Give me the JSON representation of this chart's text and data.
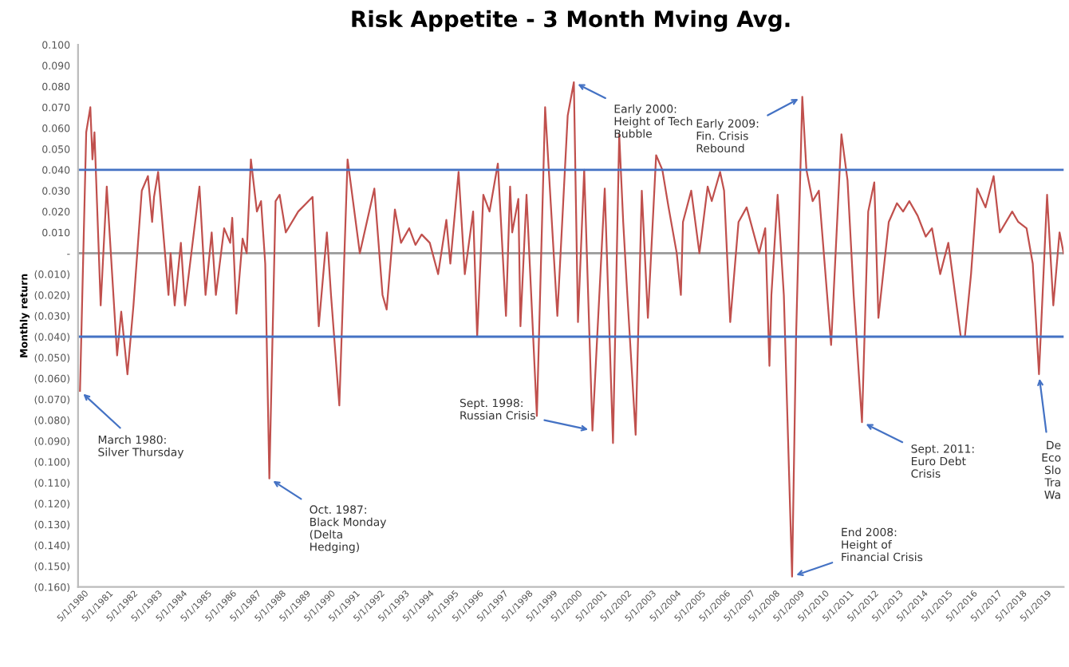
{
  "chart_data": {
    "type": "line",
    "title": "Risk Appetite - 3 Month Mving Avg.",
    "ylabel": "Monthly return",
    "x": [
      "1980-03",
      "1980-06",
      "1980-08",
      "1980-09",
      "1980-10",
      "1981-01",
      "1981-04",
      "1981-09",
      "1981-11",
      "1982-02",
      "1982-05",
      "1982-09",
      "1982-12",
      "1983-02",
      "1983-03",
      "1983-05",
      "1983-10",
      "1983-11",
      "1984-01",
      "1984-04",
      "1984-06",
      "1985-01",
      "1985-04",
      "1985-07",
      "1985-09",
      "1986-01",
      "1986-04",
      "1986-05",
      "1986-07",
      "1986-10",
      "1986-12",
      "1987-02",
      "1987-05",
      "1987-07",
      "1987-09",
      "1987-11",
      "1988-02",
      "1988-04",
      "1988-07",
      "1989-01",
      "1989-08",
      "1989-11",
      "1990-03",
      "1990-05",
      "1990-09",
      "1991-01",
      "1991-07",
      "1992-02",
      "1992-06",
      "1992-08",
      "1992-12",
      "1993-03",
      "1993-07",
      "1993-10",
      "1994-01",
      "1994-05",
      "1994-09",
      "1995-01",
      "1995-03",
      "1995-07",
      "1995-10",
      "1996-02",
      "1996-04",
      "1996-07",
      "1996-10",
      "1997-02",
      "1997-06",
      "1997-08",
      "1997-09",
      "1997-12",
      "1998-01",
      "1998-04",
      "1998-09",
      "1999-01",
      "1999-07",
      "1999-12",
      "2000-03",
      "2000-05",
      "2000-08",
      "2000-12",
      "2001-06",
      "2001-10",
      "2002-01",
      "2002-03",
      "2002-05",
      "2002-09",
      "2002-12",
      "2003-03",
      "2003-07",
      "2003-10",
      "2004-01",
      "2004-05",
      "2004-07",
      "2004-08",
      "2004-12",
      "2005-04",
      "2005-08",
      "2005-10",
      "2006-02",
      "2006-04",
      "2006-07",
      "2006-11",
      "2007-03",
      "2007-09",
      "2007-12",
      "2008-02",
      "2008-03",
      "2008-06",
      "2008-09",
      "2009-01",
      "2009-03",
      "2009-06",
      "2009-08",
      "2009-11",
      "2010-02",
      "2010-08",
      "2011-01",
      "2011-04",
      "2011-07",
      "2011-11",
      "2012-02",
      "2012-05",
      "2012-07",
      "2012-12",
      "2013-04",
      "2013-07",
      "2013-10",
      "2014-02",
      "2014-06",
      "2014-09",
      "2015-01",
      "2015-05",
      "2015-09",
      "2015-11",
      "2016-01",
      "2016-04",
      "2016-07",
      "2016-11",
      "2017-03",
      "2017-06",
      "2017-12",
      "2018-03",
      "2018-07",
      "2018-10",
      "2019-01",
      "2019-05",
      "2019-08",
      "2019-11",
      "2020-01"
    ],
    "series": [
      {
        "color": "#c0504d",
        "values": [
          -0.066,
          0.058,
          0.07,
          0.045,
          0.058,
          -0.025,
          0.032,
          -0.049,
          -0.028,
          -0.058,
          -0.025,
          0.03,
          0.037,
          0.015,
          0.027,
          0.039,
          -0.02,
          0.0,
          -0.025,
          0.005,
          -0.025,
          0.032,
          -0.02,
          0.01,
          -0.02,
          0.012,
          0.005,
          0.017,
          -0.029,
          0.007,
          0.0,
          0.045,
          0.02,
          0.025,
          -0.005,
          -0.108,
          0.025,
          0.028,
          0.01,
          0.02,
          0.027,
          -0.035,
          0.01,
          -0.02,
          -0.073,
          0.045,
          0.0,
          0.031,
          -0.02,
          -0.027,
          0.021,
          0.005,
          0.012,
          0.004,
          0.009,
          0.005,
          -0.01,
          0.016,
          -0.005,
          0.039,
          -0.01,
          0.02,
          -0.04,
          0.028,
          0.02,
          0.043,
          -0.03,
          0.032,
          0.01,
          0.026,
          -0.035,
          0.028,
          -0.078,
          0.07,
          -0.03,
          0.066,
          0.082,
          -0.033,
          0.04,
          -0.085,
          0.031,
          -0.091,
          0.057,
          0.015,
          -0.02,
          -0.087,
          0.03,
          -0.031,
          0.047,
          0.04,
          0.022,
          0.0,
          -0.02,
          0.015,
          0.03,
          0.0,
          0.032,
          0.025,
          0.039,
          0.03,
          -0.033,
          0.015,
          0.022,
          0.0,
          0.012,
          -0.054,
          -0.02,
          0.028,
          -0.02,
          -0.155,
          -0.04,
          0.075,
          0.04,
          0.025,
          0.03,
          -0.044,
          0.057,
          0.035,
          -0.02,
          -0.081,
          0.02,
          0.034,
          -0.031,
          0.015,
          0.024,
          0.02,
          0.025,
          0.018,
          0.008,
          0.012,
          -0.01,
          0.005,
          -0.025,
          -0.04,
          -0.04,
          -0.01,
          0.031,
          0.022,
          0.037,
          0.01,
          0.02,
          0.015,
          0.012,
          -0.005,
          -0.058,
          0.028,
          -0.025,
          0.01,
          0.0
        ]
      }
    ],
    "xlim": [
      "1980-02-01",
      "2020-01-01"
    ],
    "xticks": [
      {
        "value": "1980-05-01",
        "label": "5/1/1980"
      },
      {
        "value": "1981-05-01",
        "label": "5/1/1981"
      },
      {
        "value": "1982-05-01",
        "label": "5/1/1982"
      },
      {
        "value": "1983-05-01",
        "label": "5/1/1983"
      },
      {
        "value": "1984-05-01",
        "label": "5/1/1984"
      },
      {
        "value": "1985-05-01",
        "label": "5/1/1985"
      },
      {
        "value": "1986-05-01",
        "label": "5/1/1986"
      },
      {
        "value": "1987-05-01",
        "label": "5/1/1987"
      },
      {
        "value": "1988-05-01",
        "label": "5/1/1988"
      },
      {
        "value": "1989-05-01",
        "label": "5/1/1989"
      },
      {
        "value": "1990-05-01",
        "label": "5/1/1990"
      },
      {
        "value": "1991-05-01",
        "label": "5/1/1991"
      },
      {
        "value": "1992-05-01",
        "label": "5/1/1992"
      },
      {
        "value": "1993-05-01",
        "label": "5/1/1993"
      },
      {
        "value": "1994-05-01",
        "label": "5/1/1994"
      },
      {
        "value": "1995-05-01",
        "label": "5/1/1995"
      },
      {
        "value": "1996-05-01",
        "label": "5/1/1996"
      },
      {
        "value": "1997-05-01",
        "label": "5/1/1997"
      },
      {
        "value": "1998-05-01",
        "label": "5/1/1998"
      },
      {
        "value": "1999-05-01",
        "label": "5/1/1999"
      },
      {
        "value": "2000-05-01",
        "label": "5/1/2000"
      },
      {
        "value": "2001-05-01",
        "label": "5/1/2001"
      },
      {
        "value": "2002-05-01",
        "label": "5/1/2002"
      },
      {
        "value": "2003-05-01",
        "label": "5/1/2003"
      },
      {
        "value": "2004-05-01",
        "label": "5/1/2004"
      },
      {
        "value": "2005-05-01",
        "label": "5/1/2005"
      },
      {
        "value": "2006-05-01",
        "label": "5/1/2006"
      },
      {
        "value": "2007-05-01",
        "label": "5/1/2007"
      },
      {
        "value": "2008-05-01",
        "label": "5/1/2008"
      },
      {
        "value": "2009-05-01",
        "label": "5/1/2009"
      },
      {
        "value": "2010-05-01",
        "label": "5/1/2010"
      },
      {
        "value": "2011-05-01",
        "label": "5/1/2011"
      },
      {
        "value": "2012-05-01",
        "label": "5/1/2012"
      },
      {
        "value": "2013-05-01",
        "label": "5/1/2013"
      },
      {
        "value": "2014-05-01",
        "label": "5/1/2014"
      },
      {
        "value": "2015-05-01",
        "label": "5/1/2015"
      },
      {
        "value": "2016-05-01",
        "label": "5/1/2016"
      },
      {
        "value": "2017-05-01",
        "label": "5/1/2017"
      },
      {
        "value": "2018-05-01",
        "label": "5/1/2018"
      },
      {
        "value": "2019-05-01",
        "label": "5/1/2019"
      }
    ],
    "ylim": [
      -0.16,
      0.1
    ],
    "yticks": [
      {
        "value": 0.1,
        "label": "0.100"
      },
      {
        "value": 0.09,
        "label": "0.090"
      },
      {
        "value": 0.08,
        "label": "0.080"
      },
      {
        "value": 0.07,
        "label": "0.070"
      },
      {
        "value": 0.06,
        "label": "0.060"
      },
      {
        "value": 0.05,
        "label": "0.050"
      },
      {
        "value": 0.04,
        "label": "0.040"
      },
      {
        "value": 0.03,
        "label": "0.030"
      },
      {
        "value": 0.02,
        "label": "0.020"
      },
      {
        "value": 0.01,
        "label": "0.010"
      },
      {
        "value": 0,
        "label": "-"
      },
      {
        "value": -0.01,
        "label": "(0.010)"
      },
      {
        "value": -0.02,
        "label": "(0.020)"
      },
      {
        "value": -0.03,
        "label": "(0.030)"
      },
      {
        "value": -0.04,
        "label": "(0.040)"
      },
      {
        "value": -0.05,
        "label": "(0.050)"
      },
      {
        "value": -0.06,
        "label": "(0.060)"
      },
      {
        "value": -0.07,
        "label": "(0.070)"
      },
      {
        "value": -0.08,
        "label": "(0.080)"
      },
      {
        "value": -0.09,
        "label": "(0.090)"
      },
      {
        "value": -0.1,
        "label": "(0.100)"
      },
      {
        "value": -0.11,
        "label": "(0.110)"
      },
      {
        "value": -0.12,
        "label": "(0.120)"
      },
      {
        "value": -0.13,
        "label": "(0.130)"
      },
      {
        "value": -0.14,
        "label": "(0.140)"
      },
      {
        "value": -0.15,
        "label": "(0.150)"
      },
      {
        "value": -0.16,
        "label": "(0.160)"
      }
    ],
    "ref_lines": [
      {
        "axis": "y",
        "value": 0.04,
        "color": "#4472c4"
      },
      {
        "axis": "y",
        "value": -0.04,
        "color": "#4472c4"
      }
    ],
    "annotations": [
      {
        "text": "March 1980:\nSilver Thursday",
        "x": "1980-03",
        "y": -0.066
      },
      {
        "text": "Oct. 1987:\nBlack Monday\n(Delta\nHedging)",
        "x": "1987-11",
        "y": -0.108
      },
      {
        "text": "Sept. 1998:\nRussian Crisis",
        "x": "2000-12",
        "y": -0.085
      },
      {
        "text": "Early 2000:\nHeight of Tech\nBubble",
        "x": "2000-03",
        "y": 0.082
      },
      {
        "text": "Early 2009:\nFin. Crisis\nRebound",
        "x": "2009-06",
        "y": 0.075
      },
      {
        "text": "End 2008:\nHeight of\nFinancial Crisis",
        "x": "2009-01",
        "y": -0.155
      },
      {
        "text": "Sept. 2011:\nEuro Debt\nCrisis",
        "x": "2011-11",
        "y": -0.081
      },
      {
        "text": "De\nEco\nSlo\nTra\nWa",
        "x": "2019-01",
        "y": -0.058
      }
    ],
    "grid": false,
    "legend": false
  }
}
